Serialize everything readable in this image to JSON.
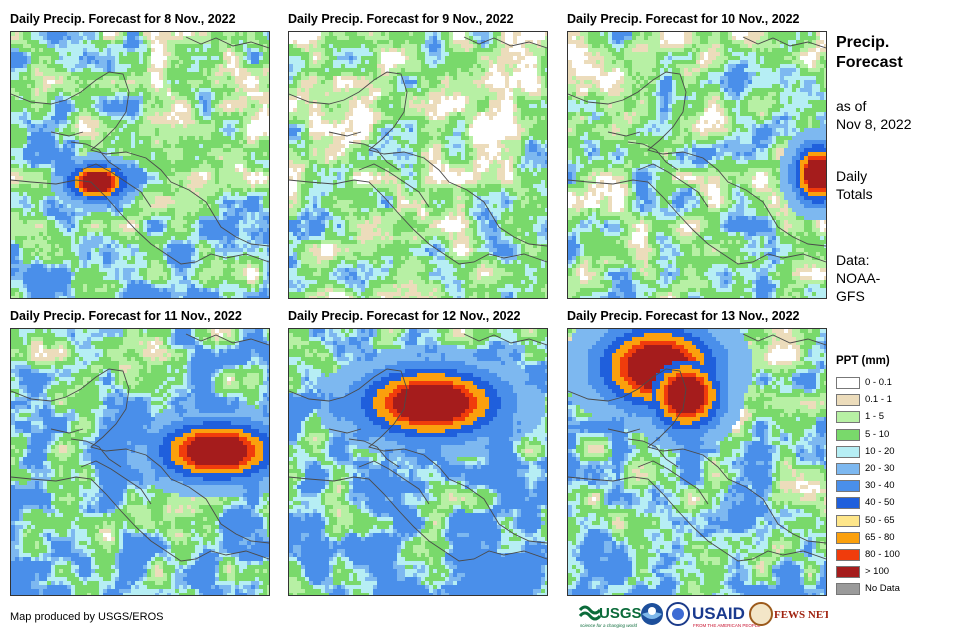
{
  "panels": [
    {
      "title": "Daily Precip. Forecast for 8 Nov., 2022",
      "date": "8 Nov."
    },
    {
      "title": "Daily Precip. Forecast for 9 Nov., 2022",
      "date": "9 Nov."
    },
    {
      "title": "Daily Precip. Forecast for 10 Nov., 2022",
      "date": "10 Nov."
    },
    {
      "title": "Daily Precip. Forecast for 11 Nov., 2022",
      "date": "11 Nov."
    },
    {
      "title": "Daily Precip. Forecast for 12 Nov., 2022",
      "date": "12 Nov."
    },
    {
      "title": "Daily Precip. Forecast for 13 Nov., 2022",
      "date": "13 Nov."
    }
  ],
  "side": {
    "title_line1": "Precip.",
    "title_line2": "Forecast",
    "asof_line1": "as of",
    "asof_line2": "Nov 8, 2022",
    "totals_line1": "Daily",
    "totals_line2": "Totals",
    "data_line1": "Data:",
    "data_line2": "NOAA-",
    "data_line3": "GFS"
  },
  "legend": {
    "title": "PPT (mm)",
    "items": [
      {
        "label": "0 - 0.1",
        "color": "#ffffff"
      },
      {
        "label": "0.1 - 1",
        "color": "#ecdcbb"
      },
      {
        "label": "1 - 5",
        "color": "#b7f0a4"
      },
      {
        "label": "5 - 10",
        "color": "#79d96b"
      },
      {
        "label": "10 - 20",
        "color": "#b6eef4"
      },
      {
        "label": "20 - 30",
        "color": "#7db8f0"
      },
      {
        "label": "30 - 40",
        "color": "#4a8fea"
      },
      {
        "label": "40 - 50",
        "color": "#1f5fdc"
      },
      {
        "label": "50 - 65",
        "color": "#fee68a"
      },
      {
        "label": "65 - 80",
        "color": "#fba00d"
      },
      {
        "label": "80 - 100",
        "color": "#f03c0c"
      },
      {
        "label": "> 100",
        "color": "#a51c1c"
      },
      {
        "label": "No Data",
        "color": "#9a9a9a"
      }
    ]
  },
  "credit": "Map produced by USGS/EROS",
  "logos": {
    "usgs": "USGS",
    "usgs_tagline": "science for a changing world",
    "noaa": "NOAA",
    "usaid": "USAID",
    "usaid_tagline": "FROM THE AMERICAN PEOPLE",
    "fewsnet": "FEWS NET"
  }
}
